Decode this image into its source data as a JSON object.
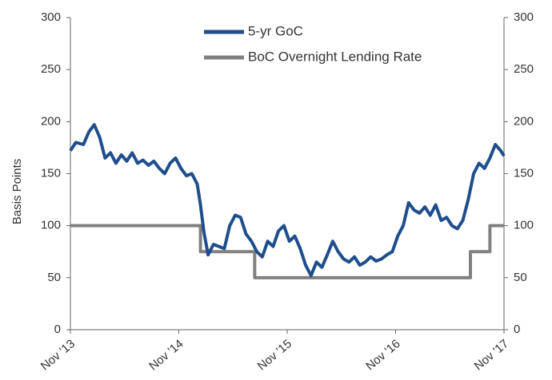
{
  "chart_data": {
    "type": "line",
    "y_label": "Basis Points",
    "x": [
      2013.83,
      2013.88,
      2013.95,
      2014.0,
      2014.05,
      2014.1,
      2014.15,
      2014.2,
      2014.25,
      2014.3,
      2014.35,
      2014.4,
      2014.45,
      2014.5,
      2014.55,
      2014.6,
      2014.65,
      2014.7,
      2014.75,
      2014.8,
      2014.85,
      2014.9,
      2014.95,
      2015.0,
      2015.03,
      2015.06,
      2015.1,
      2015.15,
      2015.2,
      2015.25,
      2015.3,
      2015.35,
      2015.4,
      2015.45,
      2015.5,
      2015.55,
      2015.6,
      2015.65,
      2015.7,
      2015.75,
      2015.8,
      2015.85,
      2015.9,
      2015.95,
      2016.0,
      2016.05,
      2016.1,
      2016.15,
      2016.2,
      2016.25,
      2016.3,
      2016.35,
      2016.4,
      2016.45,
      2016.5,
      2016.55,
      2016.6,
      2016.65,
      2016.7,
      2016.75,
      2016.8,
      2016.85,
      2016.9,
      2016.95,
      2017.0,
      2017.05,
      2017.1,
      2017.15,
      2017.2,
      2017.25,
      2017.3,
      2017.35,
      2017.4,
      2017.45,
      2017.5,
      2017.55,
      2017.6,
      2017.65,
      2017.7,
      2017.75,
      2017.8,
      2017.83
    ],
    "series": [
      {
        "name": "5-yr GoC",
        "color": "#1f4e8c",
        "values": [
          172,
          180,
          178,
          190,
          197,
          185,
          165,
          170,
          160,
          168,
          162,
          170,
          160,
          163,
          158,
          162,
          155,
          150,
          160,
          165,
          155,
          148,
          150,
          140,
          120,
          95,
          72,
          82,
          80,
          78,
          100,
          110,
          108,
          92,
          85,
          75,
          70,
          85,
          80,
          95,
          100,
          85,
          90,
          78,
          62,
          52,
          65,
          60,
          72,
          85,
          75,
          68,
          65,
          70,
          62,
          65,
          70,
          66,
          68,
          72,
          75,
          90,
          100,
          122,
          115,
          112,
          118,
          110,
          120,
          105,
          108,
          100,
          97,
          105,
          125,
          150,
          160,
          155,
          165,
          178,
          172,
          167
        ]
      },
      {
        "name": "BoC Overnight Lending Rate",
        "color": "#808080",
        "x": [
          2013.83,
          2015.03,
          2015.03,
          2015.53,
          2015.53,
          2017.52,
          2017.52,
          2017.7,
          2017.7,
          2017.83
        ],
        "values": [
          100,
          100,
          75,
          75,
          50,
          50,
          75,
          75,
          100,
          100
        ]
      }
    ],
    "xlim": [
      2013.83,
      2017.83
    ],
    "xticks": [
      {
        "value": 2013.83,
        "label": "Nov '13"
      },
      {
        "value": 2014.83,
        "label": "Nov '14"
      },
      {
        "value": 2015.83,
        "label": "Nov '15"
      },
      {
        "value": 2016.83,
        "label": "Nov '16"
      },
      {
        "value": 2017.83,
        "label": "Nov '17"
      }
    ],
    "ylim": [
      0,
      300
    ],
    "yticks": [
      0,
      50,
      100,
      150,
      200,
      250,
      300
    ],
    "y2lim": [
      0,
      300
    ],
    "y2ticks": [
      0,
      50,
      100,
      150,
      200,
      250,
      300
    ],
    "legend": "top"
  }
}
